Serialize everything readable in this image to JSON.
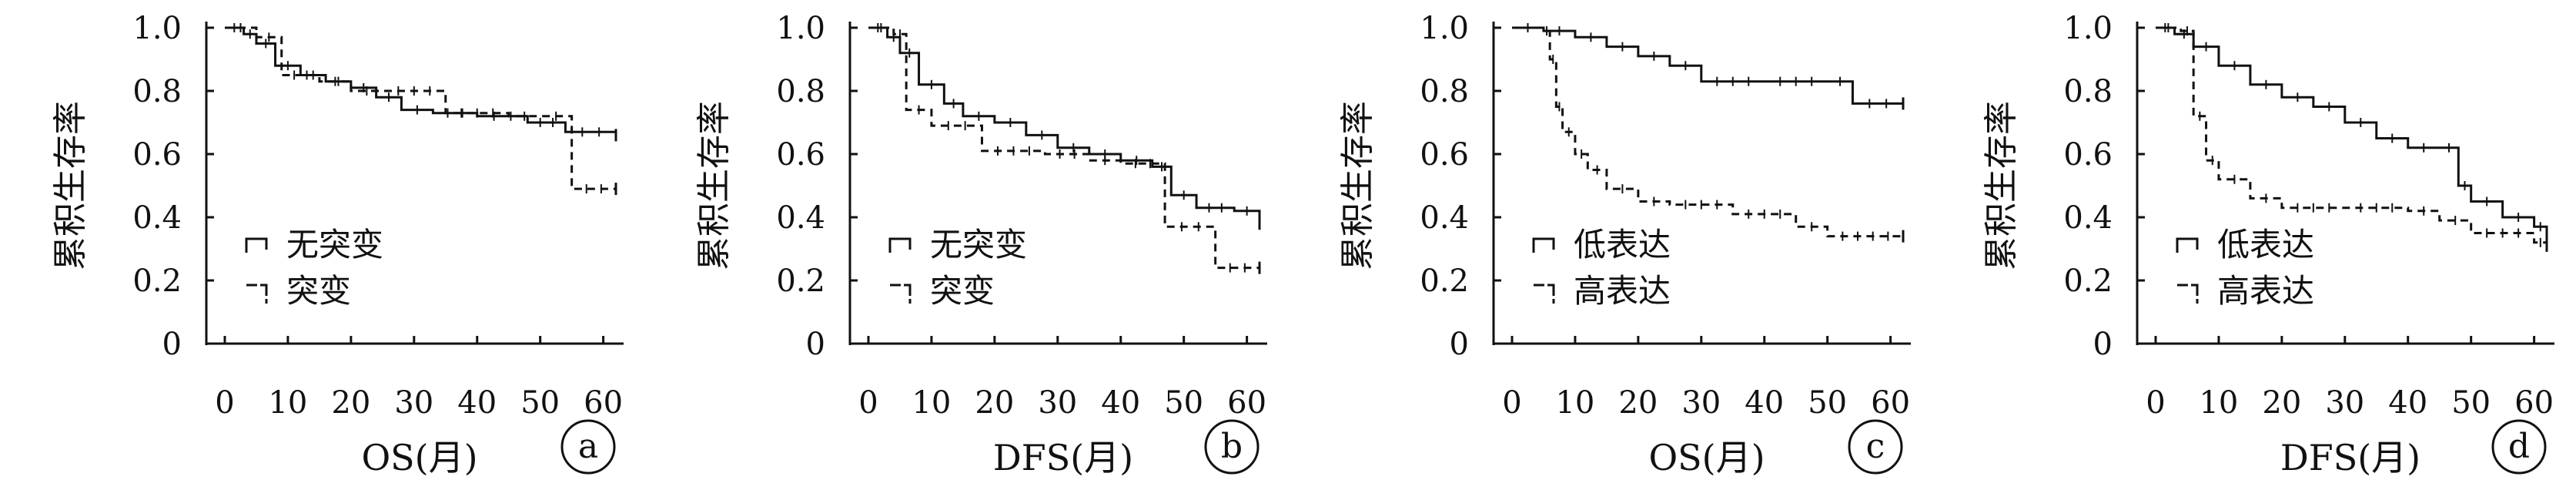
{
  "chart_data": [
    {
      "type": "line",
      "panel_label": "a",
      "ylabel": "累积生存率",
      "xlabel": "OS(月)",
      "xticks": [
        0,
        10,
        20,
        30,
        40,
        50,
        60
      ],
      "yticks": [
        "1.0",
        "0.8",
        "0.6",
        "0.4",
        "0.2",
        "0"
      ],
      "xlim": [
        0,
        62
      ],
      "ylim": [
        0,
        1.0
      ],
      "legend_position": "lower-left",
      "series": [
        {
          "name": "无突变",
          "style": "solid",
          "x": [
            0,
            3,
            5,
            8,
            12,
            16,
            20,
            24,
            28,
            33,
            40,
            48,
            54,
            62
          ],
          "y": [
            1.0,
            0.98,
            0.95,
            0.88,
            0.85,
            0.83,
            0.81,
            0.78,
            0.74,
            0.73,
            0.72,
            0.7,
            0.67,
            0.66
          ]
        },
        {
          "name": "突变",
          "style": "dashed",
          "x": [
            0,
            5,
            9,
            15,
            20,
            25,
            35,
            45,
            50,
            55,
            62
          ],
          "y": [
            1.0,
            0.97,
            0.85,
            0.83,
            0.8,
            0.8,
            0.73,
            0.72,
            0.72,
            0.49,
            0.49
          ]
        }
      ]
    },
    {
      "type": "line",
      "panel_label": "b",
      "ylabel": "累积生存率",
      "xlabel": "DFS(月)",
      "xticks": [
        0,
        10,
        20,
        30,
        40,
        50,
        60
      ],
      "yticks": [
        "1.0",
        "0.8",
        "0.6",
        "0.4",
        "0.2",
        "0"
      ],
      "xlim": [
        0,
        62
      ],
      "ylim": [
        0,
        1.0
      ],
      "legend_position": "lower-left",
      "series": [
        {
          "name": "无突变",
          "style": "solid",
          "x": [
            0,
            3,
            5,
            8,
            12,
            15,
            20,
            25,
            30,
            35,
            40,
            45,
            48,
            52,
            58,
            62
          ],
          "y": [
            1.0,
            0.97,
            0.92,
            0.82,
            0.76,
            0.72,
            0.7,
            0.66,
            0.62,
            0.6,
            0.58,
            0.56,
            0.47,
            0.43,
            0.42,
            0.38
          ]
        },
        {
          "name": "突变",
          "style": "dashed",
          "x": [
            0,
            4,
            6,
            10,
            18,
            28,
            35,
            40,
            47,
            55,
            62
          ],
          "y": [
            1.0,
            0.98,
            0.74,
            0.69,
            0.61,
            0.6,
            0.58,
            0.57,
            0.37,
            0.24,
            0.24
          ]
        }
      ]
    },
    {
      "type": "line",
      "panel_label": "c",
      "ylabel": "累积生存率",
      "xlabel": "OS(月)",
      "xticks": [
        0,
        10,
        20,
        30,
        40,
        50,
        60
      ],
      "yticks": [
        "1.0",
        "0.8",
        "0.6",
        "0.4",
        "0.2",
        "0"
      ],
      "xlim": [
        0,
        62
      ],
      "ylim": [
        0,
        1.0
      ],
      "legend_position": "lower-left",
      "series": [
        {
          "name": "低表达",
          "style": "solid",
          "x": [
            0,
            5,
            10,
            15,
            20,
            25,
            30,
            40,
            50,
            54,
            62
          ],
          "y": [
            1.0,
            0.99,
            0.97,
            0.94,
            0.91,
            0.88,
            0.83,
            0.83,
            0.83,
            0.76,
            0.76
          ]
        },
        {
          "name": "高表达",
          "style": "dashed",
          "x": [
            0,
            5,
            6,
            7,
            8,
            10,
            12,
            15,
            20,
            25,
            35,
            45,
            50,
            62
          ],
          "y": [
            1.0,
            0.99,
            0.9,
            0.75,
            0.67,
            0.6,
            0.55,
            0.49,
            0.45,
            0.44,
            0.41,
            0.37,
            0.34,
            0.34
          ]
        }
      ]
    },
    {
      "type": "line",
      "panel_label": "d",
      "ylabel": "累积生存率",
      "xlabel": "DFS(月)",
      "xticks": [
        0,
        10,
        20,
        30,
        40,
        50,
        60
      ],
      "yticks": [
        "1.0",
        "0.8",
        "0.6",
        "0.4",
        "0.2",
        "0"
      ],
      "xlim": [
        0,
        62
      ],
      "ylim": [
        0,
        1.0
      ],
      "legend_position": "lower-left",
      "series": [
        {
          "name": "低表达",
          "style": "solid",
          "x": [
            0,
            3,
            6,
            10,
            15,
            20,
            25,
            30,
            35,
            40,
            45,
            48,
            50,
            55,
            60,
            62
          ],
          "y": [
            1.0,
            0.98,
            0.94,
            0.88,
            0.82,
            0.78,
            0.75,
            0.7,
            0.65,
            0.62,
            0.62,
            0.5,
            0.45,
            0.4,
            0.37,
            0.34
          ]
        },
        {
          "name": "高表达",
          "style": "dashed",
          "x": [
            0,
            4,
            6,
            8,
            10,
            15,
            20,
            30,
            40,
            45,
            50,
            60,
            62
          ],
          "y": [
            1.0,
            0.99,
            0.72,
            0.58,
            0.52,
            0.46,
            0.43,
            0.43,
            0.42,
            0.39,
            0.35,
            0.32,
            0.31
          ]
        }
      ]
    }
  ]
}
